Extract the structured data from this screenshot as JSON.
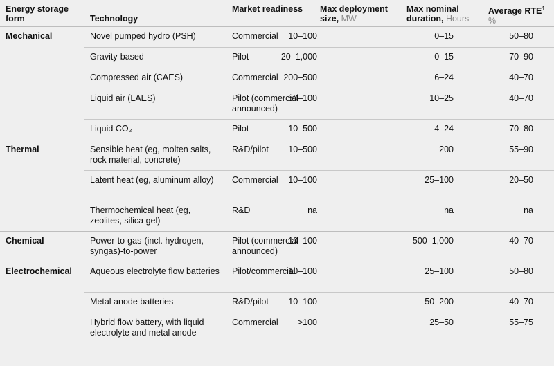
{
  "header": {
    "form": "Energy storage form",
    "technology": "Technology",
    "readiness": "Market readiness",
    "deployment": "Max deployment size,",
    "deployment_unit": "MW",
    "duration": "Max nominal duration,",
    "duration_unit": "Hours",
    "rte": "Average RTE",
    "rte_note": "1",
    "rte_unit": "%"
  },
  "groups": [
    {
      "form": "Mechanical",
      "rows": [
        {
          "technology": "Novel pumped hydro (PSH)",
          "readiness": "Commercial",
          "deployment": "10–100",
          "duration": "0–15",
          "rte": "50–80"
        },
        {
          "technology": "Gravity-based",
          "readiness": "Pilot",
          "deployment": "20–1,000",
          "duration": "0–15",
          "rte": "70–90"
        },
        {
          "technology": "Compressed air (CAES)",
          "readiness": "Commercial",
          "deployment": "200–500",
          "duration": "6–24",
          "rte": "40–70"
        },
        {
          "technology": "Liquid air (LAES)",
          "readiness": "Pilot (commercial announced)",
          "deployment": "50–100",
          "duration": "10–25",
          "rte": "40–70"
        },
        {
          "technology": "Liquid CO₂",
          "readiness": "Pilot",
          "deployment": "10–500",
          "duration": "4–24",
          "rte": "70–80"
        }
      ]
    },
    {
      "form": "Thermal",
      "rows": [
        {
          "technology": "Sensible heat (eg, molten salts, rock material, concrete)",
          "readiness": "R&D/pilot",
          "deployment": "10–500",
          "duration": "200",
          "rte": "55–90"
        },
        {
          "technology": "Latent heat (eg, aluminum alloy)",
          "readiness": "Commercial",
          "deployment": "10–100",
          "duration": "25–100",
          "rte": "20–50"
        },
        {
          "technology": "Thermochemical heat (eg, zeolites, silica gel)",
          "readiness": "R&D",
          "deployment": "na",
          "duration": "na",
          "rte": "na"
        }
      ]
    },
    {
      "form": "Chemical",
      "rows": [
        {
          "technology": "Power-to-gas-(incl. hydrogen, syngas)-to-power",
          "readiness": "Pilot (commercial announced)",
          "deployment": "10–100",
          "duration": "500–1,000",
          "rte": "40–70"
        }
      ]
    },
    {
      "form": "Electrochemical",
      "rows": [
        {
          "technology": "Aqueous electrolyte flow batteries",
          "readiness": "Pilot/commercial",
          "deployment": "10–100",
          "duration": "25–100",
          "rte": "50–80"
        },
        {
          "technology": "Metal anode batteries",
          "readiness": "R&D/pilot",
          "deployment": "10–100",
          "duration": "50–200",
          "rte": "40–70"
        },
        {
          "technology": "Hybrid flow battery, with liquid electrolyte and metal anode",
          "readiness": "Commercial",
          "deployment": ">100",
          "duration": "25–50",
          "rte": "55–75"
        }
      ]
    }
  ]
}
